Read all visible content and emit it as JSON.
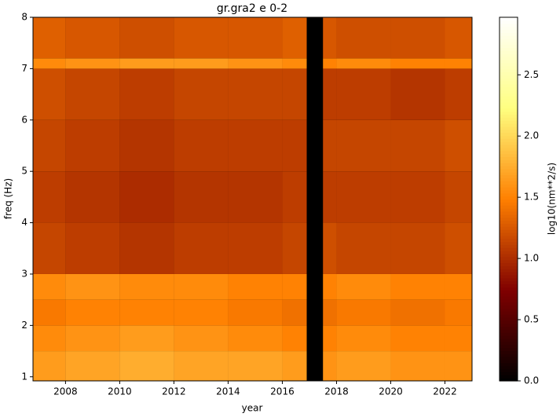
{
  "chart_data": {
    "type": "heatmap",
    "title": "gr.gra2 e 0-2",
    "xlabel": "year",
    "ylabel": "freq (Hz)",
    "colorbar_label": "log10(nm**2/s)",
    "colormap": "afmhot",
    "xbins": [
      2006.8,
      2008,
      2010,
      2012,
      2014,
      2016,
      2016.9,
      2017.5,
      2018,
      2020,
      2022,
      2023
    ],
    "ybins": [
      0.92,
      1.5,
      2,
      2.5,
      3,
      4,
      5,
      6,
      7,
      7.2,
      8
    ],
    "values": [
      [
        1.65,
        1.7,
        1.75,
        1.7,
        1.7,
        1.65,
        null,
        1.6,
        1.65,
        1.6,
        1.6
      ],
      [
        1.55,
        1.6,
        1.65,
        1.6,
        1.55,
        1.5,
        null,
        1.5,
        1.55,
        1.5,
        1.5
      ],
      [
        1.45,
        1.5,
        1.5,
        1.5,
        1.45,
        1.4,
        null,
        1.4,
        1.45,
        1.4,
        1.45
      ],
      [
        1.55,
        1.6,
        1.55,
        1.55,
        1.5,
        1.5,
        null,
        1.5,
        1.55,
        1.5,
        1.5
      ],
      [
        1.15,
        1.1,
        1.05,
        1.1,
        1.1,
        1.15,
        null,
        1.2,
        1.15,
        1.15,
        1.2
      ],
      [
        1.1,
        1.05,
        1.0,
        1.05,
        1.05,
        1.1,
        null,
        1.1,
        1.1,
        1.1,
        1.15
      ],
      [
        1.15,
        1.1,
        1.05,
        1.1,
        1.1,
        1.1,
        null,
        1.15,
        1.15,
        1.15,
        1.2
      ],
      [
        1.2,
        1.15,
        1.1,
        1.15,
        1.15,
        1.15,
        null,
        1.1,
        1.1,
        1.05,
        1.1
      ],
      [
        1.55,
        1.6,
        1.65,
        1.65,
        1.6,
        1.55,
        null,
        1.5,
        1.55,
        1.5,
        1.5
      ],
      [
        1.3,
        1.25,
        1.2,
        1.25,
        1.25,
        1.3,
        null,
        1.25,
        1.2,
        1.2,
        1.25
      ]
    ],
    "xlim": [
      2006.8,
      2023
    ],
    "ylim": [
      0.92,
      8
    ],
    "clim": [
      0,
      2.97
    ],
    "xticks": [
      2008,
      2010,
      2012,
      2014,
      2016,
      2018,
      2020,
      2022
    ],
    "yticks": [
      1,
      2,
      3,
      4,
      5,
      6,
      7,
      8
    ],
    "cticks": [
      {
        "value": 0,
        "label": "0.0"
      },
      0.5,
      {
        "value": 1,
        "label": "1.0"
      },
      1.5,
      {
        "value": 2,
        "label": "2.0"
      },
      2.5
    ]
  }
}
